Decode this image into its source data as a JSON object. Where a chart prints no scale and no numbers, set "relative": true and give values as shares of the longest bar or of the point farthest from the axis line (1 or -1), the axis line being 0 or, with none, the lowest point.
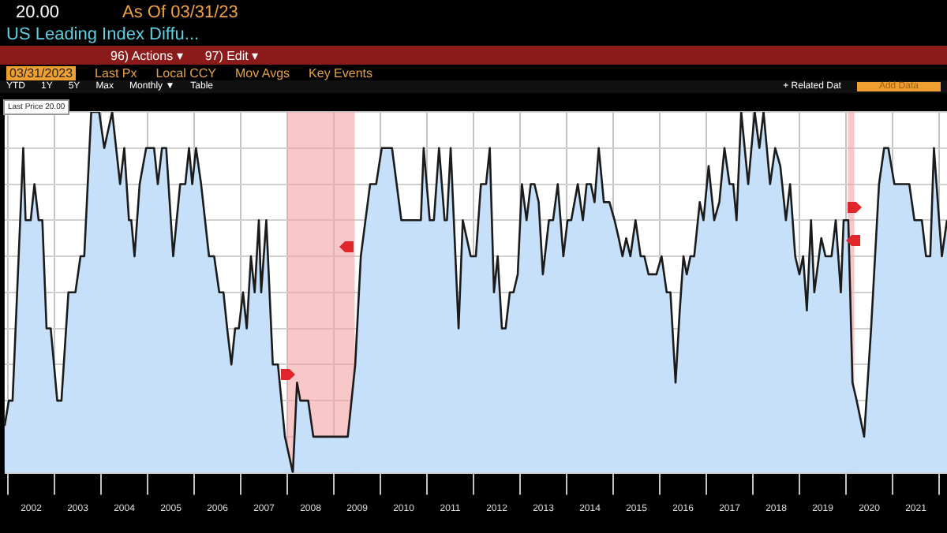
{
  "chart_data": {
    "type": "area",
    "title": "US Leading Index Diffu...",
    "relative": true,
    "grid": true,
    "annotations": [
      "20.00",
      "As Of 03/31/23",
      "96) Actions ▾",
      "97) Edit ▾",
      "03/31/2023",
      "Last Px",
      "Local CCY",
      "Mov Avgs",
      "Key Events",
      "YTD",
      "1Y",
      "5Y",
      "Max",
      "Monthly ▼",
      "Table",
      "+ Related Dat",
      "Add Data",
      "Last Price 20.00"
    ],
    "xlim": [
      2001.93,
      2022.17
    ],
    "xticks": [
      {
        "value": 2002,
        "label": null
      },
      {
        "value": 2002.5,
        "label": "2002"
      },
      {
        "value": 2003,
        "label": null
      },
      {
        "value": 2003.5,
        "label": "2003"
      },
      {
        "value": 2004,
        "label": null
      },
      {
        "value": 2004.5,
        "label": "2004"
      },
      {
        "value": 2005,
        "label": null
      },
      {
        "value": 2005.5,
        "label": "2005"
      },
      {
        "value": 2006,
        "label": null
      },
      {
        "value": 2006.5,
        "label": "2006"
      },
      {
        "value": 2007,
        "label": null
      },
      {
        "value": 2007.5,
        "label": "2007"
      },
      {
        "value": 2008,
        "label": null
      },
      {
        "value": 2008.5,
        "label": "2008"
      },
      {
        "value": 2009,
        "label": null
      },
      {
        "value": 2009.5,
        "label": "2009"
      },
      {
        "value": 2010,
        "label": null
      },
      {
        "value": 2010.5,
        "label": "2010"
      },
      {
        "value": 2011,
        "label": null
      },
      {
        "value": 2011.5,
        "label": "2011"
      },
      {
        "value": 2012,
        "label": null
      },
      {
        "value": 2012.5,
        "label": "2012"
      },
      {
        "value": 2013,
        "label": null
      },
      {
        "value": 2013.5,
        "label": "2013"
      },
      {
        "value": 2014,
        "label": null
      },
      {
        "value": 2014.5,
        "label": "2014"
      },
      {
        "value": 2015,
        "label": null
      },
      {
        "value": 2015.5,
        "label": "2015"
      },
      {
        "value": 2016,
        "label": null
      },
      {
        "value": 2016.5,
        "label": "2016"
      },
      {
        "value": 2017,
        "label": null
      },
      {
        "value": 2017.5,
        "label": "2017"
      },
      {
        "value": 2018,
        "label": null
      },
      {
        "value": 2018.5,
        "label": "2018"
      },
      {
        "value": 2019,
        "label": null
      },
      {
        "value": 2019.5,
        "label": "2019"
      },
      {
        "value": 2020,
        "label": null
      },
      {
        "value": 2020.5,
        "label": "2020"
      },
      {
        "value": 2021,
        "label": null
      },
      {
        "value": 2021.5,
        "label": "2021"
      },
      {
        "value": 2022,
        "label": null
      }
    ],
    "bands": [
      {
        "axis": "x",
        "from": 2008.0,
        "to": 2009.45,
        "color": "#f4a3a3"
      },
      {
        "axis": "x",
        "from": 2020.04,
        "to": 2020.18,
        "color": "#f4a3a3"
      }
    ],
    "series": [
      {
        "color": "#c6e0fa",
        "x": [
          2001.93,
          2002.02,
          2002.1,
          2002.33,
          2002.38,
          2002.49,
          2002.57,
          2002.66,
          2002.74,
          2002.83,
          2002.92,
          2003.06,
          2003.15,
          2003.3,
          2003.45,
          2003.56,
          2003.64,
          2003.79,
          2003.96,
          2004.07,
          2004.24,
          2004.41,
          2004.5,
          2004.6,
          2004.65,
          2004.72,
          2004.83,
          2004.97,
          2005.14,
          2005.22,
          2005.31,
          2005.4,
          2005.55,
          2005.7,
          2005.81,
          2005.89,
          2005.96,
          2006.04,
          2006.15,
          2006.32,
          2006.43,
          2006.54,
          2006.63,
          2006.71,
          2006.8,
          2006.88,
          2006.96,
          2007.05,
          2007.13,
          2007.22,
          2007.3,
          2007.39,
          2007.44,
          2007.55,
          2007.69,
          2007.8,
          2007.95,
          2008.12,
          2008.21,
          2008.28,
          2008.45,
          2008.56,
          2009.3,
          2009.46,
          2009.58,
          2009.78,
          2009.91,
          2010.03,
          2010.25,
          2010.45,
          2010.87,
          2010.93,
          2011.06,
          2011.15,
          2011.26,
          2011.38,
          2011.43,
          2011.51,
          2011.68,
          2011.77,
          2011.94,
          2012.05,
          2012.16,
          2012.27,
          2012.35,
          2012.44,
          2012.52,
          2012.61,
          2012.69,
          2012.78,
          2012.86,
          2012.95,
          2013.04,
          2013.14,
          2013.23,
          2013.31,
          2013.4,
          2013.49,
          2013.62,
          2013.71,
          2013.81,
          2013.93,
          2014.02,
          2014.1,
          2014.24,
          2014.35,
          2014.43,
          2014.52,
          2014.6,
          2014.69,
          2014.8,
          2014.92,
          2015.03,
          2015.12,
          2015.2,
          2015.28,
          2015.37,
          2015.48,
          2015.59,
          2015.67,
          2015.76,
          2015.93,
          2016.04,
          2016.15,
          2016.23,
          2016.34,
          2016.43,
          2016.51,
          2016.58,
          2016.66,
          2016.74,
          2016.86,
          2016.94,
          2017.05,
          2017.17,
          2017.28,
          2017.39,
          2017.5,
          2017.58,
          2017.65,
          2017.75,
          2017.9,
          2018.04,
          2018.14,
          2018.23,
          2018.37,
          2018.48,
          2018.59,
          2018.71,
          2018.8,
          2018.91,
          2019.0,
          2019.08,
          2019.16,
          2019.25,
          2019.32,
          2019.47,
          2019.56,
          2019.69,
          2019.78,
          2019.89,
          2019.95,
          2020.05,
          2020.14,
          2020.23,
          2020.39,
          2020.54,
          2020.71,
          2020.82,
          2020.91,
          2021.04,
          2021.36,
          2021.47,
          2021.63,
          2021.72,
          2021.81,
          2021.89,
          2022.0,
          2022.06,
          2022.17
        ],
        "values": [
          0.13,
          0.2,
          0.2,
          0.9,
          0.7,
          0.7,
          0.8,
          0.7,
          0.7,
          0.4,
          0.4,
          0.2,
          0.2,
          0.5,
          0.5,
          0.6,
          0.6,
          1.0,
          1.0,
          0.9,
          1.0,
          0.8,
          0.9,
          0.7,
          0.7,
          0.6,
          0.8,
          0.9,
          0.9,
          0.8,
          0.9,
          0.9,
          0.6,
          0.8,
          0.8,
          0.9,
          0.8,
          0.9,
          0.8,
          0.6,
          0.6,
          0.5,
          0.5,
          0.4,
          0.3,
          0.4,
          0.4,
          0.5,
          0.4,
          0.6,
          0.5,
          0.7,
          0.5,
          0.7,
          0.3,
          0.3,
          0.1,
          0.0,
          0.25,
          0.2,
          0.2,
          0.1,
          0.1,
          0.3,
          0.6,
          0.8,
          0.8,
          0.9,
          0.9,
          0.7,
          0.7,
          0.9,
          0.7,
          0.7,
          0.9,
          0.7,
          0.7,
          0.9,
          0.4,
          0.7,
          0.6,
          0.6,
          0.8,
          0.8,
          0.9,
          0.5,
          0.6,
          0.4,
          0.4,
          0.5,
          0.5,
          0.55,
          0.8,
          0.7,
          0.8,
          0.8,
          0.75,
          0.55,
          0.7,
          0.7,
          0.8,
          0.6,
          0.7,
          0.7,
          0.8,
          0.7,
          0.8,
          0.8,
          0.75,
          0.9,
          0.75,
          0.75,
          0.7,
          0.65,
          0.6,
          0.65,
          0.6,
          0.7,
          0.6,
          0.6,
          0.55,
          0.55,
          0.6,
          0.5,
          0.5,
          0.25,
          0.45,
          0.6,
          0.55,
          0.6,
          0.6,
          0.75,
          0.7,
          0.85,
          0.7,
          0.75,
          0.9,
          0.8,
          0.8,
          0.7,
          1.0,
          0.8,
          1.0,
          0.9,
          1.0,
          0.8,
          0.9,
          0.85,
          0.7,
          0.8,
          0.6,
          0.55,
          0.6,
          0.45,
          0.7,
          0.5,
          0.65,
          0.6,
          0.6,
          0.7,
          0.5,
          0.7,
          0.7,
          0.25,
          0.2,
          0.1,
          0.4,
          0.8,
          0.9,
          0.9,
          0.8,
          0.8,
          0.7,
          0.7,
          0.6,
          0.6,
          0.9,
          0.7,
          0.6,
          0.7
        ]
      }
    ]
  }
}
